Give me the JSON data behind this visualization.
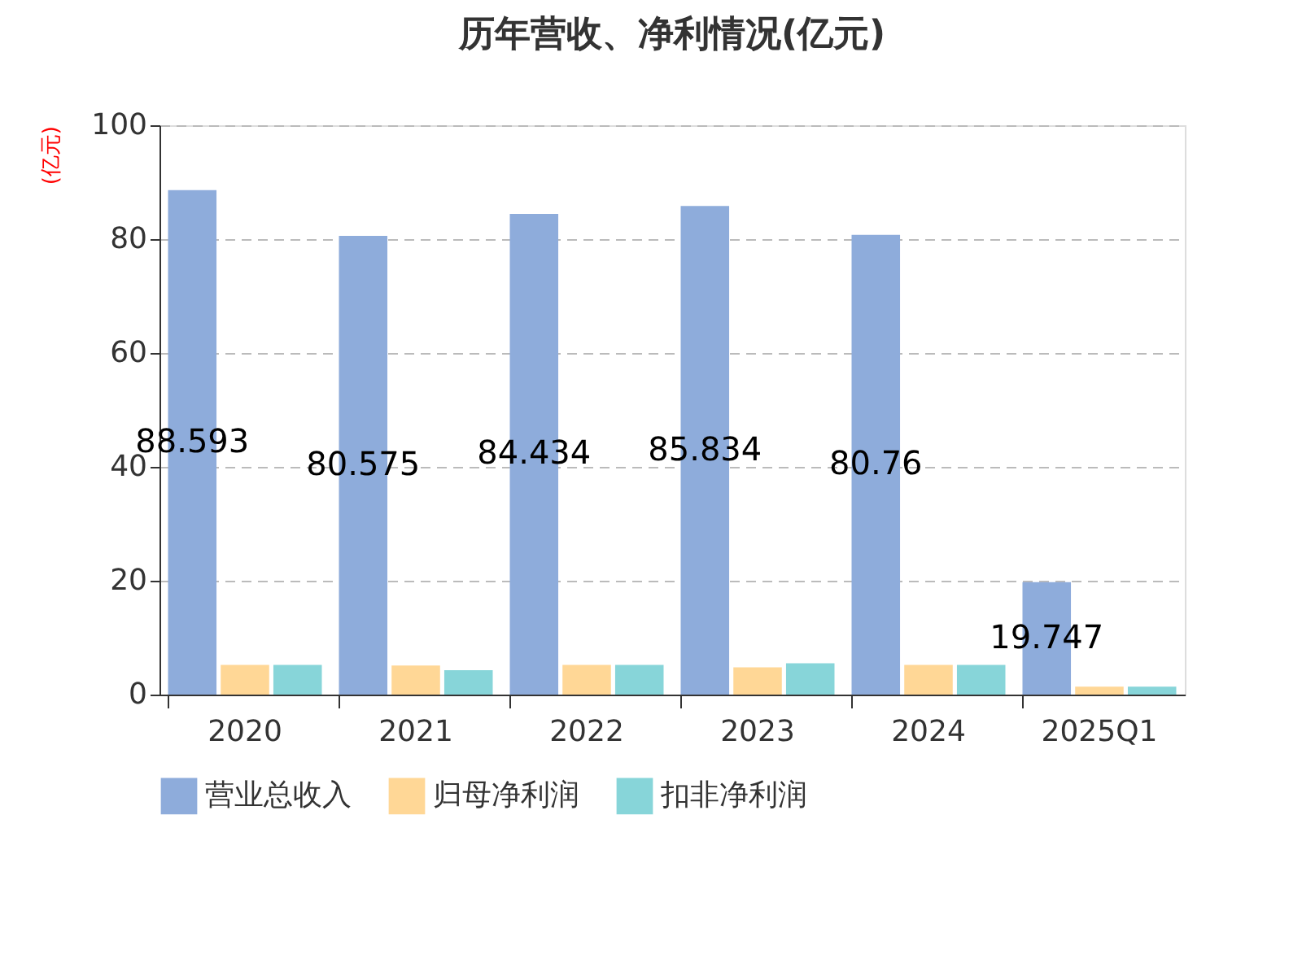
{
  "chart_data": {
    "type": "bar",
    "title": "历年营收、净利情况(亿元)",
    "ylabel": "(亿元)",
    "categories": [
      "2020",
      "2021",
      "2022",
      "2023",
      "2024",
      "2025Q1"
    ],
    "series": [
      {
        "name": "营业总收入",
        "color": "#8eacdb",
        "values": [
          88.593,
          80.575,
          84.434,
          85.834,
          80.76,
          19.747
        ],
        "value_labels": [
          "88.593",
          "80.575",
          "84.434",
          "85.834",
          "80.76",
          "19.747"
        ]
      },
      {
        "name": "归母净利润",
        "color": "#ffd796",
        "values": [
          5.2,
          5.1,
          5.2,
          4.8,
          5.2,
          1.4
        ]
      },
      {
        "name": "扣非净利润",
        "color": "#87d5d9",
        "values": [
          5.2,
          4.3,
          5.2,
          5.5,
          5.2,
          1.4
        ]
      }
    ],
    "ylim": [
      0,
      100
    ],
    "yticks": [
      0,
      20,
      40,
      60,
      80,
      100
    ],
    "grid": "y",
    "legend": "bottom"
  }
}
